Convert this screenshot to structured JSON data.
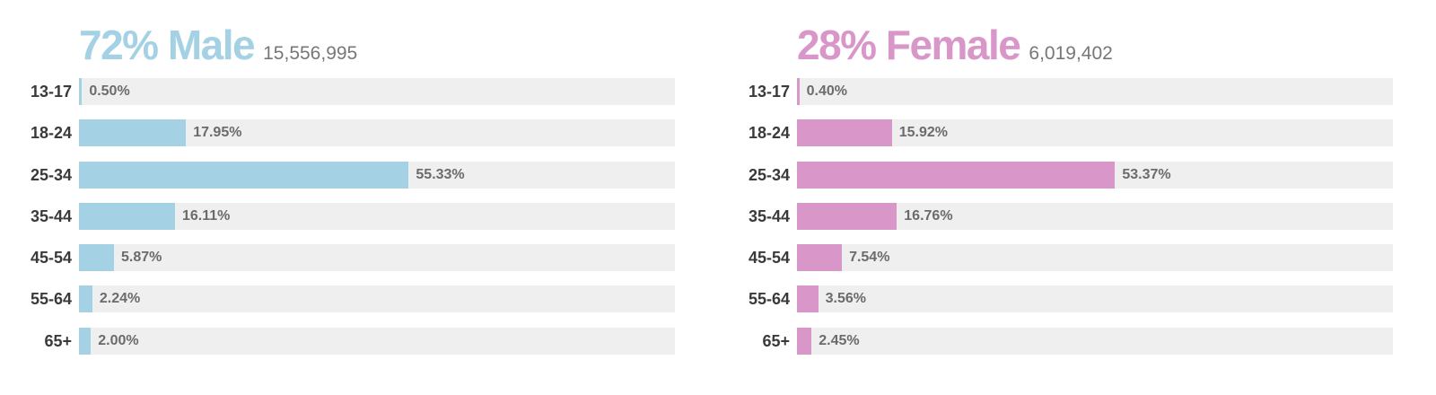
{
  "colors": {
    "male": "#a4d2e4",
    "female": "#d996c9",
    "track": "#efefef",
    "age_label": "#3a3a3a",
    "value_label": "#6b6b6b",
    "count": "#777777"
  },
  "male": {
    "headline": "72% Male",
    "count": "15,556,995"
  },
  "female": {
    "headline": "28% Female",
    "count": "6,019,402"
  },
  "chart_data": [
    {
      "type": "bar",
      "orientation": "horizontal",
      "title": "72% Male",
      "subtitle": "15,556,995",
      "categories": [
        "13-17",
        "18-24",
        "25-34",
        "35-44",
        "45-54",
        "55-64",
        "65+"
      ],
      "values": [
        0.5,
        17.95,
        55.33,
        16.11,
        5.87,
        2.24,
        2.0
      ],
      "labels": [
        "0.50%",
        "17.95%",
        "55.33%",
        "16.11%",
        "5.87%",
        "2.24%",
        "2.00%"
      ],
      "xlim": [
        0,
        100
      ],
      "color": "#a4d2e4",
      "grid": false,
      "legend": "none"
    },
    {
      "type": "bar",
      "orientation": "horizontal",
      "title": "28% Female",
      "subtitle": "6,019,402",
      "categories": [
        "13-17",
        "18-24",
        "25-34",
        "35-44",
        "45-54",
        "55-64",
        "65+"
      ],
      "values": [
        0.4,
        15.92,
        53.37,
        16.76,
        7.54,
        3.56,
        2.45
      ],
      "labels": [
        "0.40%",
        "15.92%",
        "53.37%",
        "16.76%",
        "7.54%",
        "3.56%",
        "2.45%"
      ],
      "xlim": [
        0,
        100
      ],
      "color": "#d996c9",
      "grid": false,
      "legend": "none"
    }
  ]
}
